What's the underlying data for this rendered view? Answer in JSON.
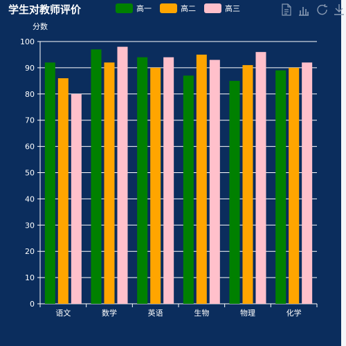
{
  "chart_data": {
    "type": "bar",
    "title": "学生对教师评价",
    "ylabel": "分数",
    "xlabel": "",
    "categories": [
      "语文",
      "数学",
      "英语",
      "生物",
      "物理",
      "化学"
    ],
    "series": [
      {
        "name": "高一",
        "color": "#008000",
        "values": [
          92,
          97,
          94,
          87,
          85,
          89
        ]
      },
      {
        "name": "高二",
        "color": "#ffa500",
        "values": [
          86,
          92,
          90,
          95,
          91,
          90
        ]
      },
      {
        "name": "高三",
        "color": "#ffc0cb",
        "values": [
          80,
          98,
          94,
          93,
          96,
          92
        ]
      }
    ],
    "ylim": [
      0,
      100
    ],
    "yticks": [
      0,
      10,
      20,
      30,
      40,
      50,
      60,
      70,
      80,
      90,
      100
    ],
    "grid": true,
    "legend": "top"
  },
  "toolbox": {
    "icons": [
      "data-view-icon",
      "bar-chart-icon",
      "restore-icon",
      "download-icon"
    ]
  },
  "colors": {
    "background": "#0b2d5d",
    "text": "#ffffff",
    "grid": "#ffffff",
    "toolbox_icon": "#8a9bb3"
  }
}
